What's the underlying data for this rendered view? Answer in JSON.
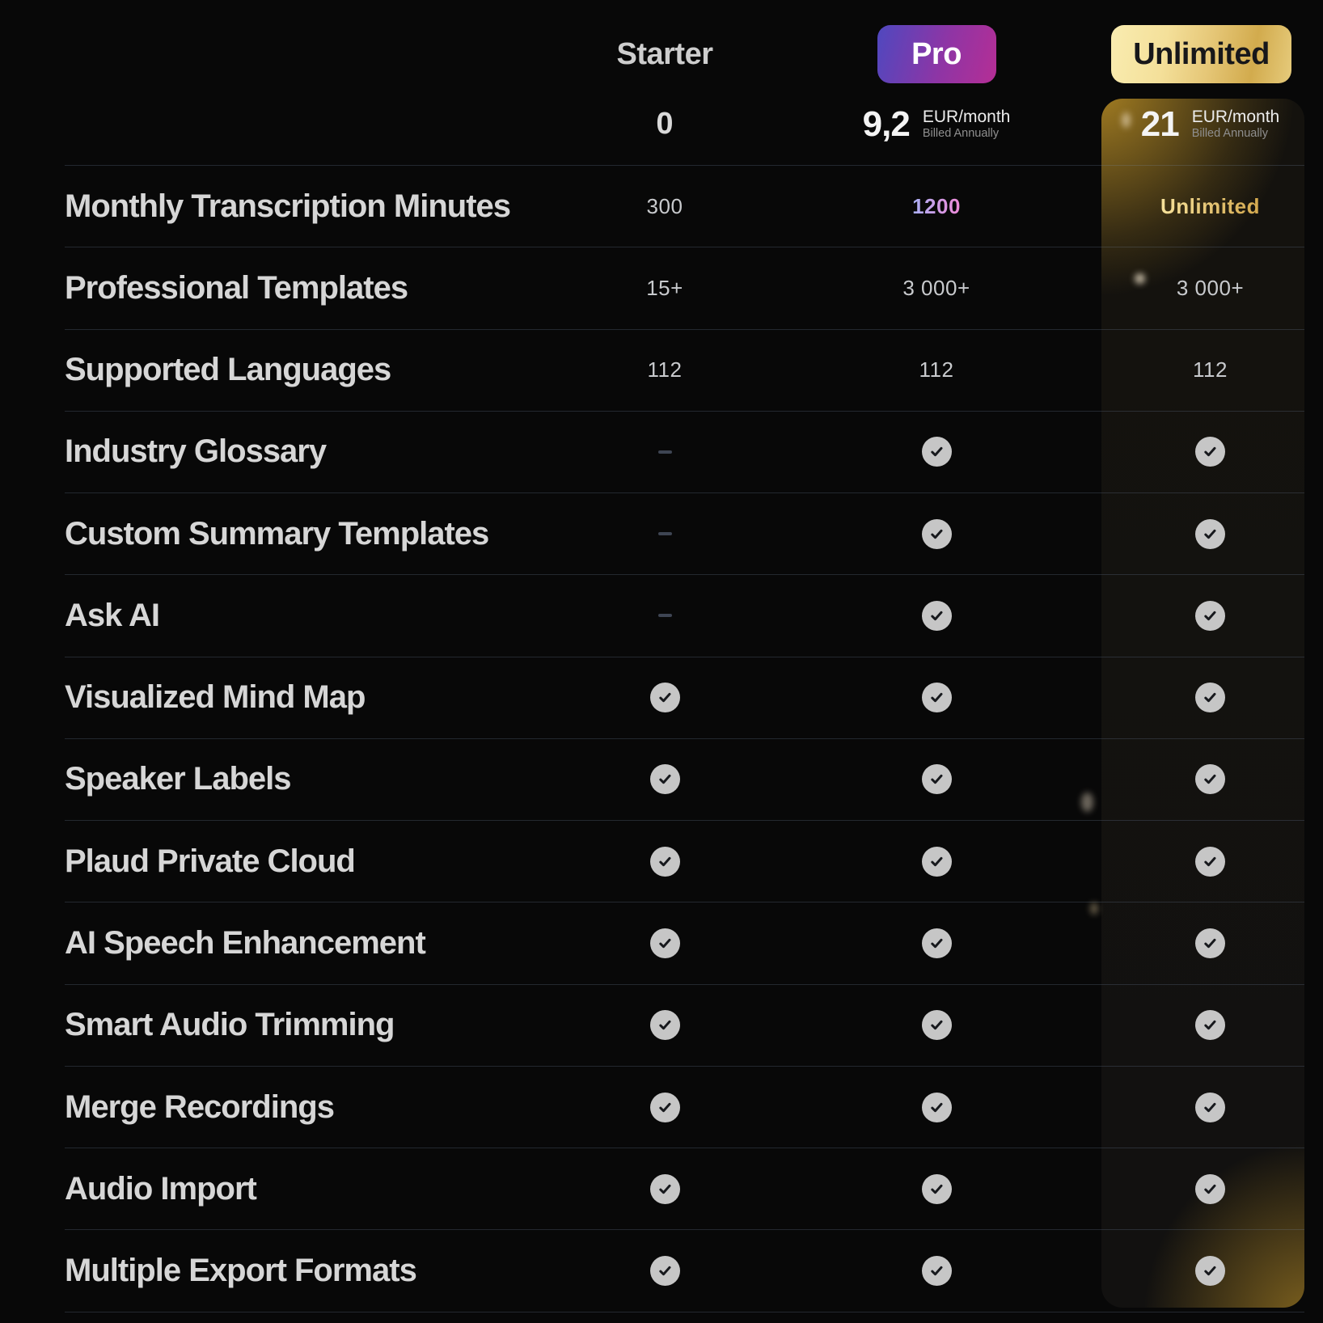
{
  "plans": {
    "starter": {
      "name": "Starter",
      "price": "0"
    },
    "pro": {
      "name": "Pro",
      "price": "9,2",
      "price_unit": "EUR/month",
      "billing_note": "Billed Annually"
    },
    "unlimited": {
      "name": "Unlimited",
      "price": "21",
      "price_unit": "EUR/month",
      "billing_note": "Billed Annually"
    }
  },
  "features": [
    {
      "label": "Monthly Transcription Minutes",
      "starter": {
        "type": "text",
        "value": "300"
      },
      "pro": {
        "type": "text-gradient",
        "value": "1200"
      },
      "unlimited": {
        "type": "text-gold",
        "value": "Unlimited"
      }
    },
    {
      "label": "Professional Templates",
      "starter": {
        "type": "text",
        "value": "15+"
      },
      "pro": {
        "type": "text",
        "value": "3 000+"
      },
      "unlimited": {
        "type": "text",
        "value": "3 000+"
      }
    },
    {
      "label": "Supported Languages",
      "starter": {
        "type": "text",
        "value": "112"
      },
      "pro": {
        "type": "text",
        "value": "112"
      },
      "unlimited": {
        "type": "text",
        "value": "112"
      }
    },
    {
      "label": "Industry Glossary",
      "starter": {
        "type": "dash"
      },
      "pro": {
        "type": "check"
      },
      "unlimited": {
        "type": "check"
      }
    },
    {
      "label": "Custom Summary Templates",
      "starter": {
        "type": "dash"
      },
      "pro": {
        "type": "check"
      },
      "unlimited": {
        "type": "check"
      }
    },
    {
      "label": "Ask AI",
      "starter": {
        "type": "dash"
      },
      "pro": {
        "type": "check"
      },
      "unlimited": {
        "type": "check"
      }
    },
    {
      "label": "Visualized Mind Map",
      "starter": {
        "type": "check"
      },
      "pro": {
        "type": "check"
      },
      "unlimited": {
        "type": "check"
      }
    },
    {
      "label": "Speaker Labels",
      "starter": {
        "type": "check"
      },
      "pro": {
        "type": "check"
      },
      "unlimited": {
        "type": "check"
      }
    },
    {
      "label": "Plaud Private Cloud",
      "starter": {
        "type": "check"
      },
      "pro": {
        "type": "check"
      },
      "unlimited": {
        "type": "check"
      }
    },
    {
      "label": "AI Speech Enhancement",
      "starter": {
        "type": "check"
      },
      "pro": {
        "type": "check"
      },
      "unlimited": {
        "type": "check"
      }
    },
    {
      "label": "Smart Audio Trimming",
      "starter": {
        "type": "check"
      },
      "pro": {
        "type": "check"
      },
      "unlimited": {
        "type": "check"
      }
    },
    {
      "label": "Merge Recordings",
      "starter": {
        "type": "check"
      },
      "pro": {
        "type": "check"
      },
      "unlimited": {
        "type": "check"
      }
    },
    {
      "label": "Audio Import",
      "starter": {
        "type": "check"
      },
      "pro": {
        "type": "check"
      },
      "unlimited": {
        "type": "check"
      }
    },
    {
      "label": "Multiple Export Formats",
      "starter": {
        "type": "check"
      },
      "pro": {
        "type": "check"
      },
      "unlimited": {
        "type": "check"
      }
    }
  ],
  "icons": {
    "check": "check-icon",
    "dash": "dash-icon"
  },
  "colors": {
    "background": "#080808",
    "pro_gradient_start": "#4f48bf",
    "pro_gradient_end": "#b52e95",
    "gold_gradient_start": "#f9ecb0",
    "gold_gradient_end": "#d2ab4d",
    "pro_value_gradient": [
      "#a9b0f5",
      "#f08ad8"
    ],
    "gold_value_gradient": [
      "#f6e19b",
      "#d4a94e"
    ],
    "check_circle": "#c6c6c6",
    "check_mark": "#17191d",
    "divider": "rgba(122,142,172,0.24)"
  }
}
